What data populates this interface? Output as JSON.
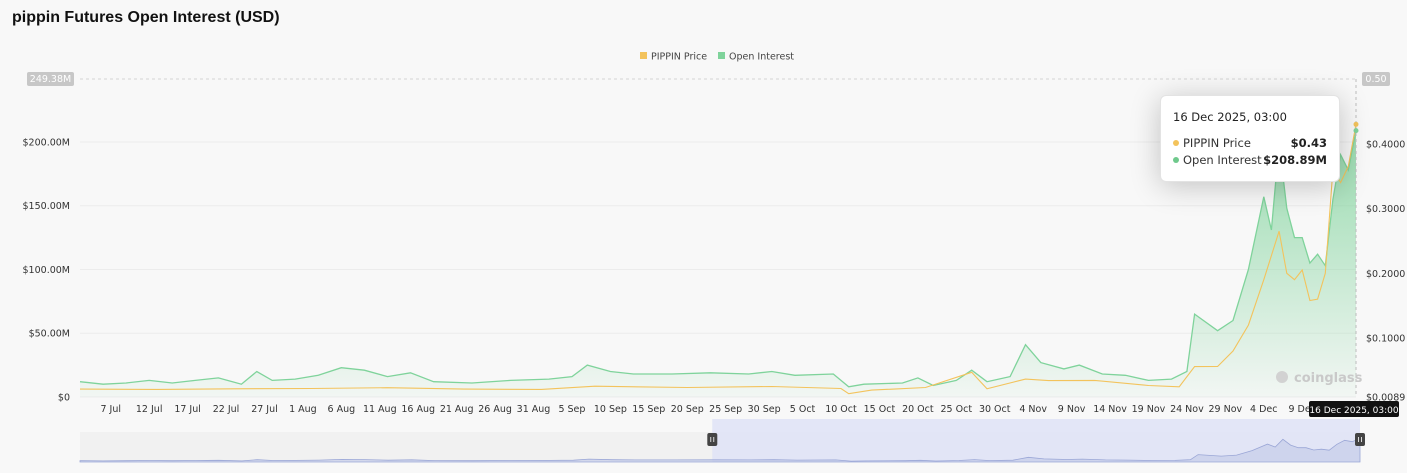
{
  "title": "pippin Futures Open Interest (USD)",
  "legend": [
    {
      "label": "PIPPIN Price",
      "color": "#f3c35c"
    },
    {
      "label": "Open Interest",
      "color": "#7fd39b"
    }
  ],
  "tooltip": {
    "date": "16 Dec 2025, 03:00",
    "rows": [
      {
        "label": "PIPPIN Price",
        "value": "$0.43",
        "color": "#f3c35c"
      },
      {
        "label": "Open Interest",
        "value": "$208.89M",
        "color": "#6fc98c"
      }
    ]
  },
  "crosshair_label": "16 Dec 2025, 03:00",
  "watermark": "coinglass",
  "chart_data": {
    "type": "area",
    "title": "pippin Futures Open Interest (USD)",
    "x_ticks": [
      "7 Jul",
      "12 Jul",
      "17 Jul",
      "22 Jul",
      "27 Jul",
      "1 Aug",
      "6 Aug",
      "11 Aug",
      "16 Aug",
      "21 Aug",
      "26 Aug",
      "31 Aug",
      "5 Sep",
      "10 Sep",
      "15 Sep",
      "20 Sep",
      "25 Sep",
      "30 Sep",
      "5 Oct",
      "10 Oct",
      "15 Oct",
      "20 Oct",
      "25 Oct",
      "30 Oct",
      "4 Nov",
      "9 Nov",
      "14 Nov",
      "19 Nov",
      "24 Nov",
      "29 Nov",
      "4 Dec",
      "9 Dec"
    ],
    "x_range": [
      "2025-07-03",
      "2025-12-16"
    ],
    "y_left": {
      "ticks": [
        "$0",
        "$50.00M",
        "$100.00M",
        "$150.00M",
        "$200.00M"
      ],
      "tick_values": [
        0,
        50,
        100,
        150,
        200
      ],
      "max_label": "249.38M",
      "range": [
        0,
        249.38
      ],
      "unit": "M USD"
    },
    "y_right": {
      "ticks": [
        "$0.0089",
        "$0.1000",
        "$0.2000",
        "$0.3000",
        "$0.4000"
      ],
      "tick_values": [
        0.0089,
        0.1,
        0.2,
        0.3,
        0.4
      ],
      "max_label": "0.50",
      "range": [
        0.0089,
        0.5
      ]
    },
    "grid": true,
    "legend_position": "top-center",
    "series": [
      {
        "name": "Open Interest",
        "axis": "left",
        "color": "#7fd39b",
        "points": [
          [
            "2025-07-03",
            12
          ],
          [
            "2025-07-06",
            10
          ],
          [
            "2025-07-09",
            11
          ],
          [
            "2025-07-12",
            13
          ],
          [
            "2025-07-15",
            11
          ],
          [
            "2025-07-18",
            13
          ],
          [
            "2025-07-21",
            15
          ],
          [
            "2025-07-24",
            10
          ],
          [
            "2025-07-26",
            20
          ],
          [
            "2025-07-28",
            13
          ],
          [
            "2025-07-31",
            14
          ],
          [
            "2025-08-03",
            17
          ],
          [
            "2025-08-06",
            23
          ],
          [
            "2025-08-09",
            21
          ],
          [
            "2025-08-12",
            16
          ],
          [
            "2025-08-15",
            19
          ],
          [
            "2025-08-18",
            12
          ],
          [
            "2025-08-23",
            11
          ],
          [
            "2025-08-28",
            13
          ],
          [
            "2025-09-02",
            14
          ],
          [
            "2025-09-05",
            16
          ],
          [
            "2025-09-07",
            25
          ],
          [
            "2025-09-10",
            20
          ],
          [
            "2025-09-13",
            18
          ],
          [
            "2025-09-18",
            18
          ],
          [
            "2025-09-23",
            19
          ],
          [
            "2025-09-28",
            18
          ],
          [
            "2025-10-01",
            20
          ],
          [
            "2025-10-04",
            17
          ],
          [
            "2025-10-09",
            18
          ],
          [
            "2025-10-11",
            8
          ],
          [
            "2025-10-13",
            10
          ],
          [
            "2025-10-18",
            11
          ],
          [
            "2025-10-20",
            15
          ],
          [
            "2025-10-22",
            9
          ],
          [
            "2025-10-25",
            13
          ],
          [
            "2025-10-27",
            21
          ],
          [
            "2025-10-29",
            12
          ],
          [
            "2025-11-01",
            16
          ],
          [
            "2025-11-03",
            41
          ],
          [
            "2025-11-05",
            27
          ],
          [
            "2025-11-08",
            22
          ],
          [
            "2025-11-10",
            25
          ],
          [
            "2025-11-13",
            18
          ],
          [
            "2025-11-16",
            17
          ],
          [
            "2025-11-19",
            13
          ],
          [
            "2025-11-22",
            14
          ],
          [
            "2025-11-24",
            20
          ],
          [
            "2025-11-25",
            65
          ],
          [
            "2025-11-28",
            52
          ],
          [
            "2025-11-30",
            60
          ],
          [
            "2025-12-02",
            100
          ],
          [
            "2025-12-04",
            157
          ],
          [
            "2025-12-05",
            131
          ],
          [
            "2025-12-06",
            199
          ],
          [
            "2025-12-07",
            148
          ],
          [
            "2025-12-08",
            125
          ],
          [
            "2025-12-09",
            125
          ],
          [
            "2025-12-10",
            105
          ],
          [
            "2025-12-11",
            112
          ],
          [
            "2025-12-12",
            103
          ],
          [
            "2025-12-13",
            155
          ],
          [
            "2025-12-14",
            190
          ],
          [
            "2025-12-15",
            178
          ],
          [
            "2025-12-16",
            208.89
          ]
        ]
      },
      {
        "name": "PIPPIN Price",
        "axis": "right",
        "color": "#f3c35c",
        "points": [
          [
            "2025-07-03",
            0.0211
          ],
          [
            "2025-07-13",
            0.0206
          ],
          [
            "2025-07-23",
            0.0216
          ],
          [
            "2025-08-02",
            0.0221
          ],
          [
            "2025-08-12",
            0.0232
          ],
          [
            "2025-08-22",
            0.0211
          ],
          [
            "2025-09-01",
            0.0206
          ],
          [
            "2025-09-08",
            0.0256
          ],
          [
            "2025-09-20",
            0.0236
          ],
          [
            "2025-10-01",
            0.0251
          ],
          [
            "2025-10-10",
            0.0221
          ],
          [
            "2025-10-11",
            0.014
          ],
          [
            "2025-10-14",
            0.0195
          ],
          [
            "2025-10-21",
            0.0236
          ],
          [
            "2025-10-27",
            0.0471
          ],
          [
            "2025-10-29",
            0.0216
          ],
          [
            "2025-11-03",
            0.0365
          ],
          [
            "2025-11-06",
            0.0343
          ],
          [
            "2025-11-12",
            0.0345
          ],
          [
            "2025-11-19",
            0.0267
          ],
          [
            "2025-11-23",
            0.0246
          ],
          [
            "2025-11-25",
            0.0558
          ],
          [
            "2025-11-28",
            0.056
          ],
          [
            "2025-11-30",
            0.08
          ],
          [
            "2025-12-02",
            0.12
          ],
          [
            "2025-12-04",
            0.19
          ],
          [
            "2025-12-06",
            0.265
          ],
          [
            "2025-12-07",
            0.2
          ],
          [
            "2025-12-08",
            0.19
          ],
          [
            "2025-12-09",
            0.205
          ],
          [
            "2025-12-10",
            0.158
          ],
          [
            "2025-12-11",
            0.16
          ],
          [
            "2025-12-12",
            0.2
          ],
          [
            "2025-12-13",
            0.36
          ],
          [
            "2025-12-14",
            0.34
          ],
          [
            "2025-12-15",
            0.365
          ],
          [
            "2025-12-16",
            0.43
          ]
        ]
      }
    ]
  }
}
